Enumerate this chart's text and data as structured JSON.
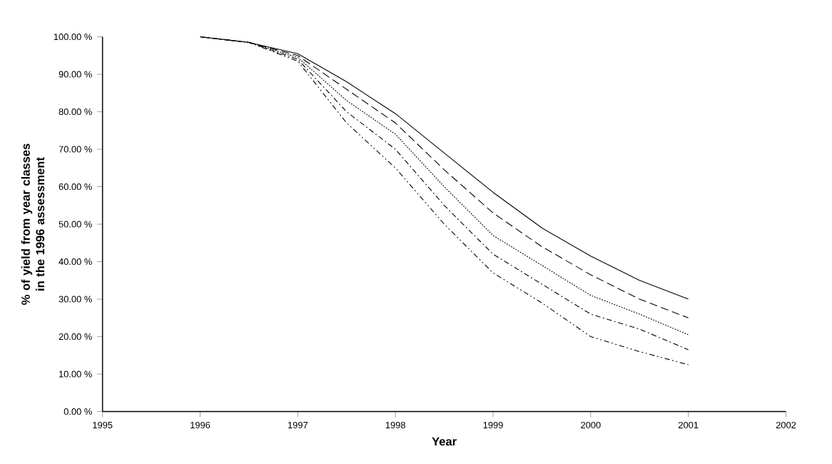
{
  "chart_data": {
    "type": "line",
    "xlabel": "Year",
    "ylabel": "% of yield from year classes in the 1996 assessment",
    "xlim": [
      1995,
      2002
    ],
    "xticks": [
      1995,
      1996,
      1997,
      1998,
      1999,
      2000,
      2001,
      2002
    ],
    "ylim": [
      0,
      100
    ],
    "yticks": [
      {
        "value": 0,
        "label": "0.00 %"
      },
      {
        "value": 10,
        "label": "10.00 %"
      },
      {
        "value": 20,
        "label": "20.00 %"
      },
      {
        "value": 30,
        "label": "30.00 %"
      },
      {
        "value": 40,
        "label": "40.00 %"
      },
      {
        "value": 50,
        "label": "50.00 %"
      },
      {
        "value": 60,
        "label": "60.00 %"
      },
      {
        "value": 70,
        "label": "70.00 %"
      },
      {
        "value": 80,
        "label": "80.00 %"
      },
      {
        "value": 90,
        "label": "90.00 %"
      },
      {
        "value": 100,
        "label": "100.00 %"
      }
    ],
    "grid": false,
    "marker": "none",
    "x": [
      1996,
      1996.5,
      1997,
      1997.5,
      1998,
      1998.5,
      1999,
      1999.5,
      2000,
      2000.5,
      2001
    ],
    "series": [
      {
        "color": "#000000",
        "line_style": "solid",
        "values": [
          100,
          98.5,
          95.5,
          88,
          79.5,
          69,
          58.5,
          49,
          41.5,
          35,
          30
        ]
      },
      {
        "color": "#000000",
        "line_style": "dashed",
        "values": [
          100,
          98.5,
          95,
          86,
          77,
          64.5,
          53,
          44,
          36.5,
          30,
          25
        ]
      },
      {
        "color": "#000000",
        "line_style": "dotted",
        "values": [
          100,
          98.5,
          94.5,
          83,
          74,
          60,
          47,
          39,
          31,
          26,
          20.5
        ]
      },
      {
        "color": "#000000",
        "line_style": "dashdot",
        "values": [
          100,
          98.5,
          94,
          80,
          70,
          55,
          42,
          34,
          26,
          22,
          16.5
        ]
      },
      {
        "color": "#000000",
        "line_style": "dashdotdot",
        "values": [
          100,
          98.5,
          93.5,
          77,
          65,
          50,
          37,
          29,
          20,
          16,
          12.5
        ]
      }
    ]
  }
}
